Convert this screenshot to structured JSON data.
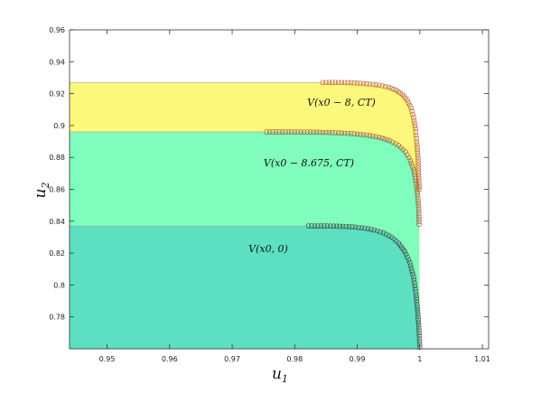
{
  "chart_data": {
    "type": "area",
    "xlabel": "u",
    "xlabel_sub": "1",
    "ylabel": "u",
    "ylabel_sub": "2",
    "xlim": [
      0.944,
      1.011
    ],
    "ylim": [
      0.76,
      0.96
    ],
    "xticks": [
      0.95,
      0.96,
      0.97,
      0.98,
      0.99,
      1,
      1.01
    ],
    "xtick_labels": [
      "0.95",
      "0.96",
      "0.97",
      "0.98",
      "0.99",
      "1",
      "1.01"
    ],
    "yticks": [
      0.78,
      0.8,
      0.82,
      0.84,
      0.86,
      0.88,
      0.9,
      0.92,
      0.94,
      0.96
    ],
    "ytick_labels": [
      "0.78",
      "0.8",
      "0.82",
      "0.84",
      "0.86",
      "0.88",
      "0.9",
      "0.92",
      "0.94",
      "0.96"
    ],
    "grid": false,
    "series": [
      {
        "label": "V(x0 − 8, CT)",
        "fill_color": "#fcf87c",
        "marker_color": "#b5542f",
        "plateau": 0.927,
        "knee_x": 0.9987,
        "start_x": 0.9845,
        "points": [
          [
            0.9845,
            0.927
          ],
          [
            0.986,
            0.927
          ],
          [
            0.9875,
            0.927
          ],
          [
            0.989,
            0.9268
          ],
          [
            0.9905,
            0.9265
          ],
          [
            0.992,
            0.926
          ],
          [
            0.9935,
            0.9253
          ],
          [
            0.995,
            0.924
          ],
          [
            0.9962,
            0.9222
          ],
          [
            0.9972,
            0.9195
          ],
          [
            0.998,
            0.9158
          ],
          [
            0.9986,
            0.911
          ],
          [
            0.999,
            0.905
          ],
          [
            0.9993,
            0.898
          ],
          [
            0.9995,
            0.89
          ],
          [
            0.9997,
            0.88
          ],
          [
            0.9998,
            0.87
          ],
          [
            0.9999,
            0.86
          ]
        ]
      },
      {
        "label": "V(x0 − 8.675, CT)",
        "fill_color": "#80fcbc",
        "marker_color": "#a04a3a",
        "plateau": 0.896,
        "knee_x": 0.999,
        "start_x": 0.9755,
        "points": [
          [
            0.9755,
            0.896
          ],
          [
            0.9775,
            0.896
          ],
          [
            0.9795,
            0.896
          ],
          [
            0.9815,
            0.8959
          ],
          [
            0.9835,
            0.8958
          ],
          [
            0.9855,
            0.8956
          ],
          [
            0.9875,
            0.8953
          ],
          [
            0.9895,
            0.8948
          ],
          [
            0.9915,
            0.894
          ],
          [
            0.9935,
            0.8926
          ],
          [
            0.9952,
            0.8905
          ],
          [
            0.9966,
            0.8875
          ],
          [
            0.9977,
            0.8835
          ],
          [
            0.9985,
            0.878
          ],
          [
            0.9991,
            0.871
          ],
          [
            0.9995,
            0.862
          ],
          [
            0.9998,
            0.85
          ],
          [
            0.9999,
            0.838
          ]
        ]
      },
      {
        "label": "V(x0, 0)",
        "fill_color": "#5ddfc2",
        "marker_color": "#3a3a3a",
        "plateau": 0.837,
        "knee_x": 0.9995,
        "start_x": 0.9822,
        "points": [
          [
            0.9822,
            0.837
          ],
          [
            0.9837,
            0.837
          ],
          [
            0.9852,
            0.837
          ],
          [
            0.9867,
            0.8369
          ],
          [
            0.9882,
            0.8367
          ],
          [
            0.9897,
            0.8363
          ],
          [
            0.9912,
            0.8356
          ],
          [
            0.9927,
            0.8345
          ],
          [
            0.9942,
            0.8327
          ],
          [
            0.9955,
            0.83
          ],
          [
            0.9966,
            0.8262
          ],
          [
            0.9976,
            0.821
          ],
          [
            0.9984,
            0.814
          ],
          [
            0.999,
            0.805
          ],
          [
            0.9994,
            0.794
          ],
          [
            0.9997,
            0.782
          ],
          [
            0.9999,
            0.77
          ],
          [
            1.0,
            0.761
          ]
        ]
      }
    ]
  }
}
